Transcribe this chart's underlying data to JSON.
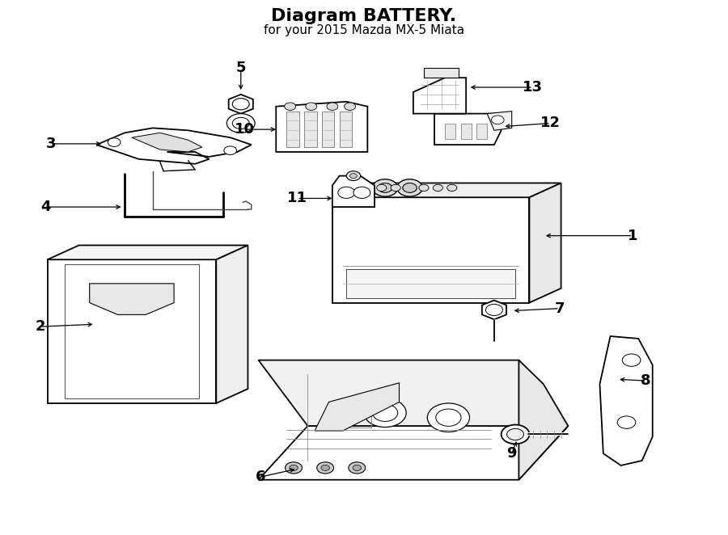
{
  "title": "BATTERY",
  "subtitle": "for your 2015 Mazda MX-5 Miata",
  "bg_color": "#ffffff",
  "line_color": "#000000",
  "title_fontsize": 16,
  "subtitle_fontsize": 11,
  "label_fontsize": 13
}
